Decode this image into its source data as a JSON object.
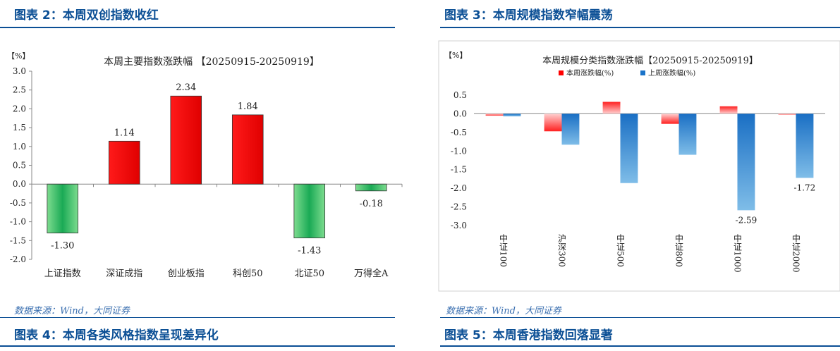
{
  "left": {
    "heading": "图表 2：本周双创指数收红",
    "source": "数据来源：Wind，大同证券",
    "next_heading": "图表 4：本周各类风格指数呈现差异化"
  },
  "right": {
    "heading": "图表 3：本周规模指数窄幅震荡",
    "source": "数据来源：Wind，大同证券",
    "next_heading": "图表 5：本周香港指数回落显著"
  },
  "colors": {
    "up": "#ff0000",
    "down": "#1aaa55",
    "last_week": "#1a73c9",
    "heading": "#0b4f95"
  },
  "chart_data": [
    {
      "type": "bar",
      "title": "本周主要指数涨跌幅 【20250915-20250919】",
      "unit_label": "【%】",
      "categories": [
        "上证指数",
        "深证成指",
        "创业板指",
        "科创50",
        "北证50",
        "万得全A"
      ],
      "values": [
        -1.3,
        1.14,
        2.34,
        1.84,
        -1.43,
        -0.18
      ],
      "data_labels": [
        "-1.30",
        "1.14",
        "2.34",
        "1.84",
        "-1.43",
        "-0.18"
      ],
      "ylim": [
        -2.0,
        3.0
      ],
      "yticks": [
        "3.0",
        "2.5",
        "2.0",
        "1.5",
        "1.0",
        "0.5",
        "0.0",
        "-0.5",
        "-1.0",
        "-1.5",
        "-2.0"
      ],
      "legend": "none"
    },
    {
      "type": "bar",
      "title": "本周规模分类指数涨跌幅【20250915-20250919】",
      "unit_label": "【%】",
      "categories": [
        "中证100",
        "沪深300",
        "中证500",
        "中证800",
        "中证1000",
        "中证2000"
      ],
      "series": [
        {
          "name": "本周涨跌幅(%)",
          "values": [
            -0.05,
            -0.47,
            0.32,
            -0.27,
            0.2,
            -0.02
          ]
        },
        {
          "name": "上周涨跌幅(%)",
          "values": [
            -0.07,
            -0.83,
            -1.86,
            -1.1,
            -2.59,
            -1.72
          ]
        }
      ],
      "data_labels": [
        "-2.59",
        "-1.72"
      ],
      "ylim": [
        -3.0,
        0.5
      ],
      "yticks": [
        "0.5",
        "0.0",
        "-0.5",
        "-1.0",
        "-1.5",
        "-2.0",
        "-2.5",
        "-3.0"
      ],
      "legend": "top"
    }
  ]
}
